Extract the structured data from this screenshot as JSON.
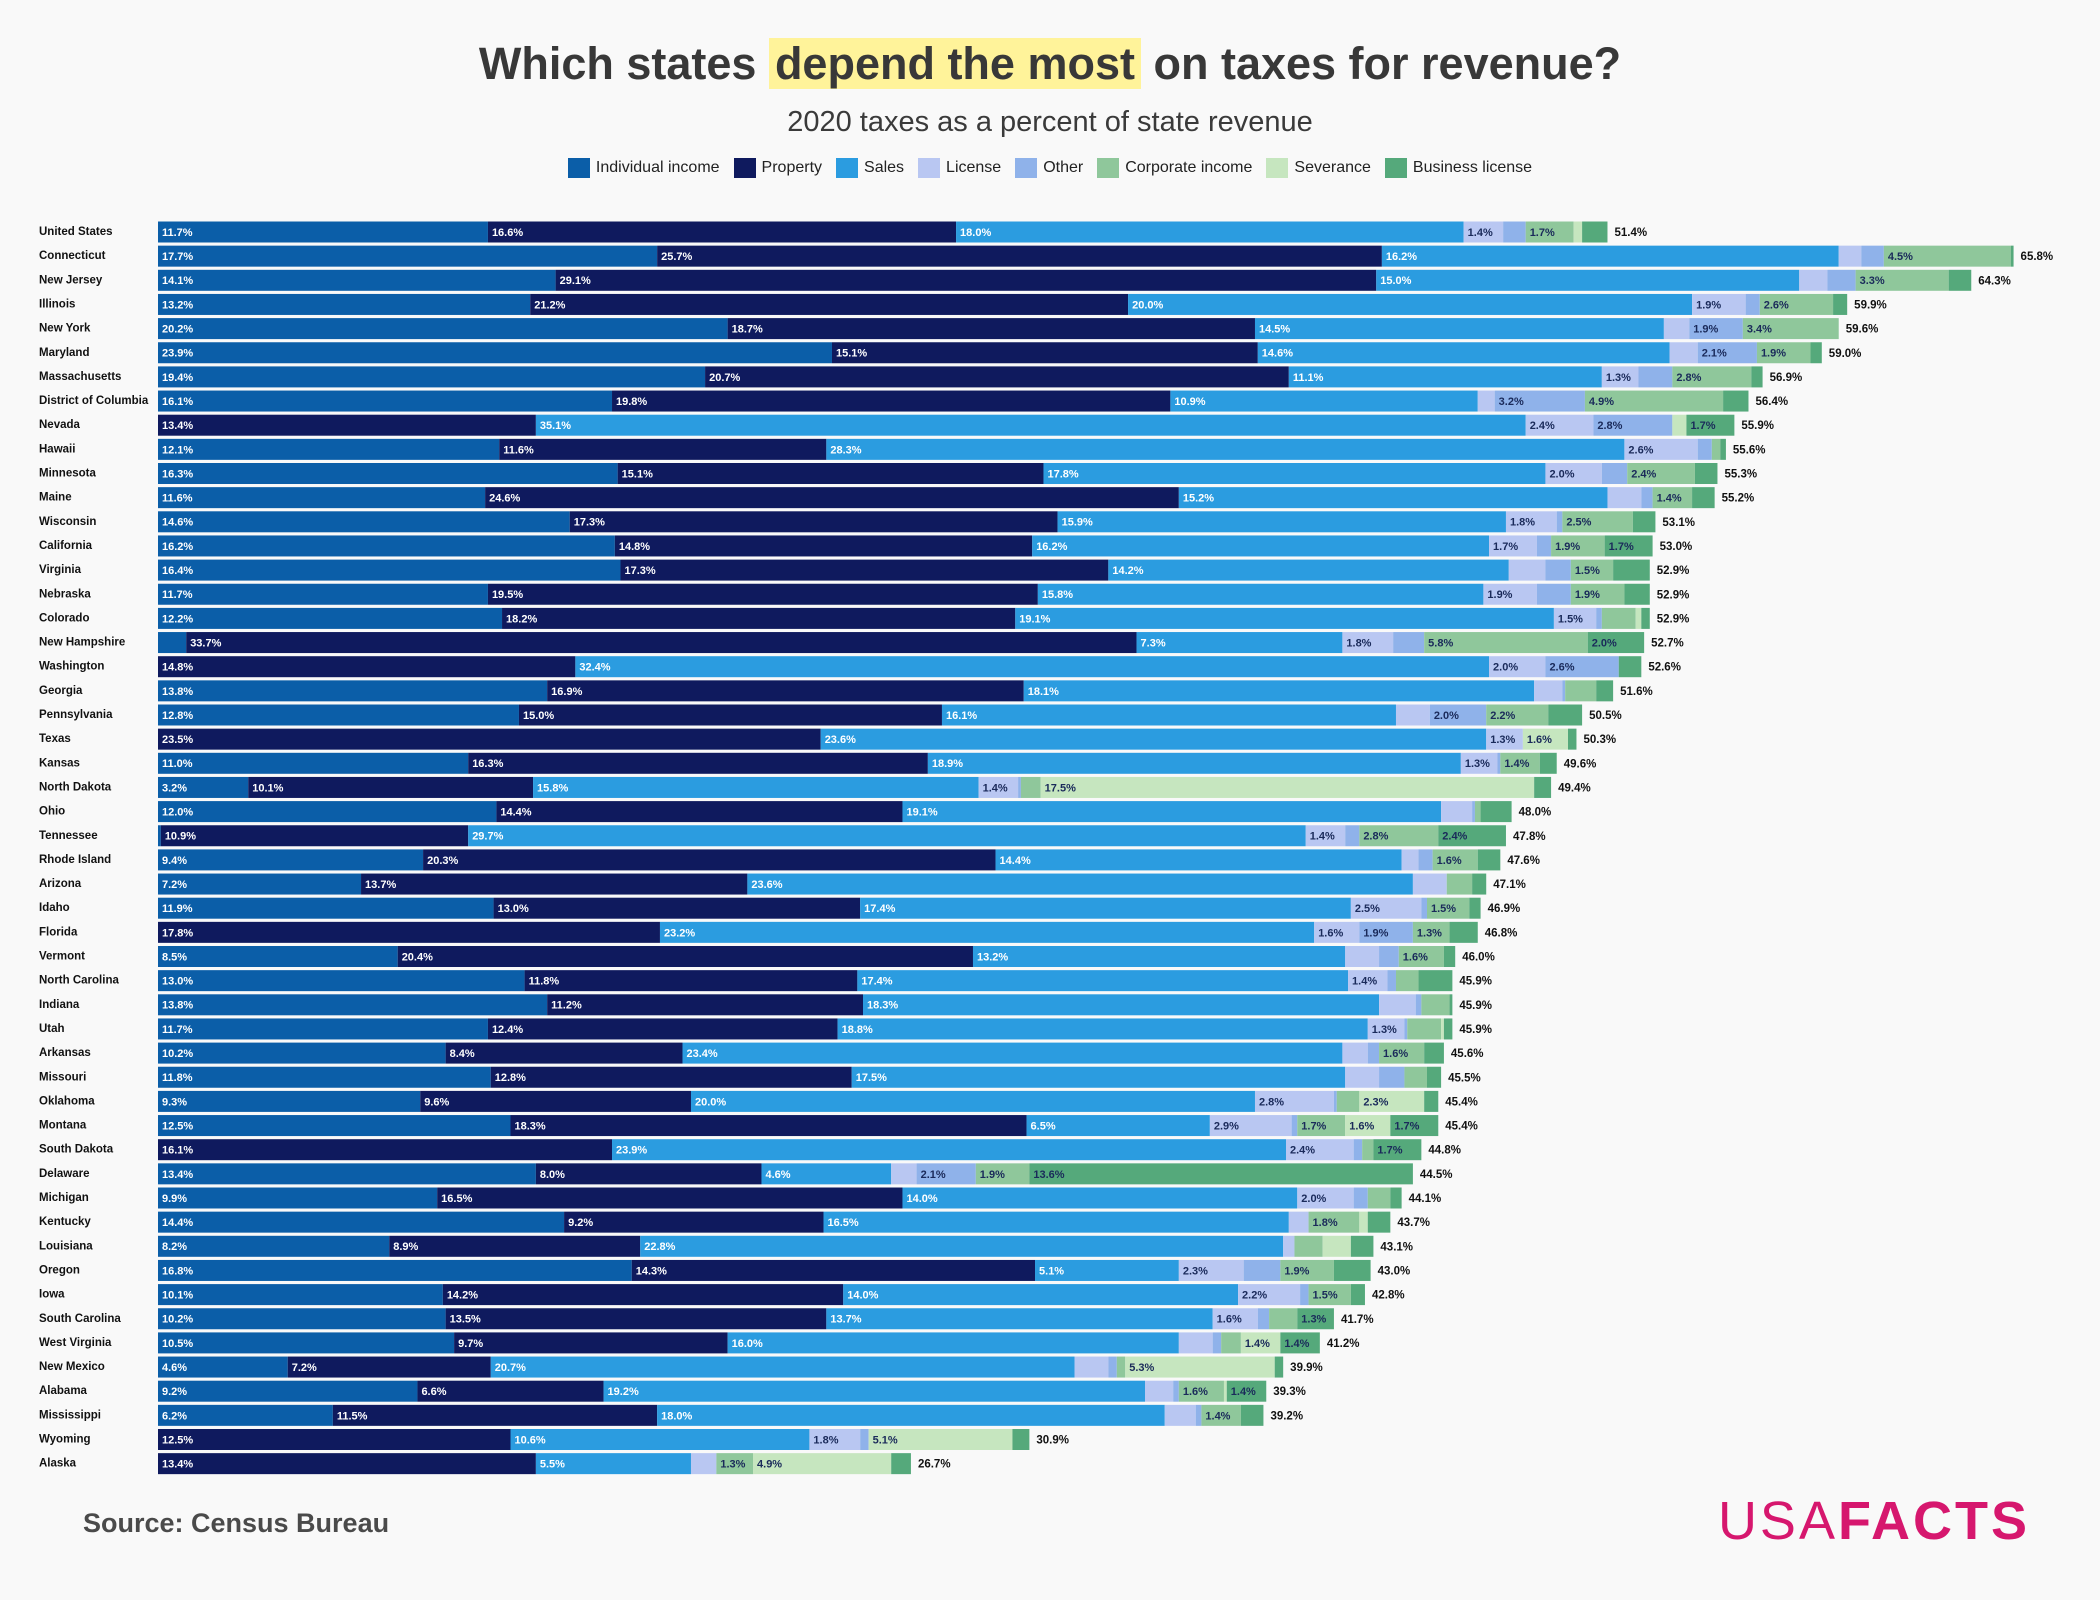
{
  "chart_data": {
    "type": "stacked-bar-horizontal",
    "title_parts": [
      "Which states",
      "depend the most",
      "on taxes for revenue?"
    ],
    "subtitle": "2020 taxes as a percent of state revenue",
    "categories": [
      "United States",
      "Connecticut",
      "New Jersey",
      "Illinois",
      "New York",
      "Maryland",
      "Massachusetts",
      "District of Columbia",
      "Nevada",
      "Hawaii",
      "Minnesota",
      "Maine",
      "Wisconsin",
      "California",
      "Virginia",
      "Nebraska",
      "Colorado",
      "New Hampshire",
      "Washington",
      "Georgia",
      "Pennsylvania",
      "Texas",
      "Kansas",
      "North Dakota",
      "Ohio",
      "Tennessee",
      "Rhode Island",
      "Arizona",
      "Idaho",
      "Florida",
      "Vermont",
      "North Carolina",
      "Indiana",
      "Utah",
      "Arkansas",
      "Missouri",
      "Oklahoma",
      "Montana",
      "South Dakota",
      "Delaware",
      "Michigan",
      "Kentucky",
      "Louisiana",
      "Oregon",
      "Iowa",
      "South Carolina",
      "West Virginia",
      "New Mexico",
      "Alabama",
      "Mississippi",
      "Wyoming",
      "Alaska"
    ],
    "series": [
      {
        "name": "Individual income",
        "color": "#0b5ea8",
        "values": [
          11.7,
          17.7,
          14.1,
          13.2,
          20.2,
          23.9,
          19.4,
          16.1,
          0,
          12.1,
          16.3,
          11.6,
          14.6,
          16.2,
          16.4,
          11.7,
          12.2,
          1.0,
          0,
          13.8,
          12.8,
          0,
          11.0,
          3.2,
          12.0,
          0.1,
          9.4,
          7.2,
          11.9,
          0,
          8.5,
          13.0,
          13.8,
          11.7,
          10.2,
          11.8,
          9.3,
          12.5,
          0,
          13.4,
          9.9,
          14.4,
          8.2,
          16.8,
          10.1,
          10.2,
          10.5,
          4.6,
          9.2,
          6.2,
          0,
          0
        ],
        "value_labels": [
          "11.7%",
          "17.7%",
          "14.1%",
          "13.2%",
          "20.2%",
          "23.9%",
          "19.4%",
          "16.1%",
          null,
          "12.1%",
          "16.3%",
          "11.6%",
          "14.6%",
          "16.2%",
          "16.4%",
          "11.7%",
          "12.2%",
          null,
          null,
          "13.8%",
          "12.8%",
          null,
          "11.0%",
          "3.2%",
          "12.0%",
          null,
          "9.4%",
          "7.2%",
          "11.9%",
          null,
          "8.5%",
          "13.0%",
          "13.8%",
          "11.7%",
          "10.2%",
          "11.8%",
          "9.3%",
          "12.5%",
          null,
          "13.4%",
          "9.9%",
          "14.4%",
          "8.2%",
          "16.8%",
          "10.1%",
          "10.2%",
          "10.5%",
          "4.6%",
          "9.2%",
          "6.2%",
          null,
          null
        ]
      },
      {
        "name": "Property",
        "color": "#0f1a5e",
        "values": [
          16.6,
          25.7,
          29.1,
          21.2,
          18.7,
          15.1,
          20.7,
          19.8,
          13.4,
          11.6,
          15.1,
          24.6,
          17.3,
          14.8,
          17.3,
          19.5,
          18.2,
          33.7,
          14.8,
          16.9,
          15.0,
          23.5,
          16.3,
          10.1,
          14.4,
          10.9,
          20.3,
          13.7,
          13.0,
          17.8,
          20.4,
          11.8,
          11.2,
          12.4,
          8.4,
          12.8,
          9.6,
          18.3,
          16.1,
          8.0,
          16.5,
          9.2,
          8.9,
          14.3,
          14.2,
          13.5,
          9.7,
          7.2,
          6.6,
          11.5,
          12.5,
          13.4
        ],
        "value_labels": [
          "16.6%",
          "25.7%",
          "29.1%",
          "21.2%",
          "18.7%",
          "15.1%",
          "20.7%",
          "19.8%",
          "13.4%",
          "11.6%",
          "15.1%",
          "24.6%",
          "17.3%",
          "14.8%",
          "17.3%",
          "19.5%",
          "18.2%",
          "33.7%",
          "14.8%",
          "16.9%",
          "15.0%",
          "23.5%",
          "16.3%",
          "10.1%",
          "14.4%",
          "10.9%",
          "20.3%",
          "13.7%",
          "13.0%",
          "17.8%",
          "20.4%",
          "11.8%",
          "11.2%",
          "12.4%",
          "8.4%",
          "12.8%",
          "9.6%",
          "18.3%",
          "16.1%",
          "8.0%",
          "16.5%",
          "9.2%",
          "8.9%",
          "14.3%",
          "14.2%",
          "13.5%",
          "9.7%",
          "7.2%",
          "6.6%",
          "11.5%",
          "12.5%",
          "13.4%"
        ]
      },
      {
        "name": "Sales",
        "color": "#2b9ce0",
        "values": [
          18.0,
          16.2,
          15.0,
          20.0,
          14.5,
          14.6,
          11.1,
          10.9,
          35.1,
          28.3,
          17.8,
          15.2,
          15.9,
          16.2,
          14.2,
          15.8,
          19.1,
          7.3,
          32.4,
          18.1,
          16.1,
          23.6,
          18.9,
          15.8,
          19.1,
          29.7,
          14.4,
          23.6,
          17.4,
          23.2,
          13.2,
          17.4,
          18.3,
          18.8,
          23.4,
          17.5,
          20.0,
          6.5,
          23.9,
          4.6,
          14.0,
          16.5,
          22.8,
          5.1,
          14.0,
          13.7,
          16.0,
          20.7,
          19.2,
          18.0,
          10.6,
          5.5
        ],
        "value_labels": [
          "18.0%",
          "16.2%",
          "15.0%",
          "20.0%",
          "14.5%",
          "14.6%",
          "11.1%",
          "10.9%",
          "35.1%",
          "28.3%",
          "17.8%",
          "15.2%",
          "15.9%",
          "16.2%",
          "14.2%",
          "15.8%",
          "19.1%",
          "7.3%",
          "32.4%",
          "18.1%",
          "16.1%",
          "23.6%",
          "18.9%",
          "15.8%",
          "19.1%",
          "29.7%",
          "14.4%",
          "23.6%",
          "17.4%",
          "23.2%",
          "13.2%",
          "17.4%",
          "18.3%",
          "18.8%",
          "23.4%",
          "17.5%",
          "20.0%",
          "6.5%",
          "23.9%",
          "4.6%",
          "14.0%",
          "16.5%",
          "22.8%",
          "5.1%",
          "14.0%",
          "13.7%",
          "16.0%",
          "20.7%",
          "19.2%",
          "18.0%",
          "10.6%",
          "5.5%"
        ]
      },
      {
        "name": "License",
        "color": "#b9c7f2",
        "values": [
          1.4,
          0.8,
          1.0,
          1.9,
          0.9,
          1.0,
          1.3,
          0.6,
          2.4,
          2.6,
          2.0,
          1.2,
          1.8,
          1.7,
          1.3,
          1.9,
          1.5,
          1.8,
          2.0,
          1.0,
          1.2,
          1.3,
          1.3,
          1.4,
          1.1,
          1.4,
          0.6,
          1.2,
          2.5,
          1.6,
          1.2,
          1.4,
          1.3,
          1.3,
          0.9,
          1.2,
          2.8,
          2.9,
          2.4,
          0.9,
          2.0,
          0.7,
          0.4,
          2.3,
          2.2,
          1.6,
          1.2,
          1.2,
          1.0,
          1.1,
          1.8,
          0.9
        ],
        "value_labels": [
          "1.4%",
          null,
          null,
          "1.9%",
          null,
          null,
          "1.3%",
          null,
          "2.4%",
          "2.6%",
          "2.0%",
          null,
          "1.8%",
          "1.7%",
          null,
          "1.9%",
          "1.5%",
          "1.8%",
          "2.0%",
          null,
          null,
          "1.3%",
          "1.3%",
          "1.4%",
          null,
          "1.4%",
          null,
          null,
          "2.5%",
          "1.6%",
          null,
          "1.4%",
          null,
          "1.3%",
          null,
          null,
          "2.8%",
          "2.9%",
          "2.4%",
          null,
          "2.0%",
          null,
          null,
          "2.3%",
          "2.2%",
          "1.6%",
          null,
          null,
          null,
          null,
          "1.8%",
          null
        ]
      },
      {
        "name": "Other",
        "color": "#8fb2ea",
        "values": [
          0.8,
          0.8,
          1.0,
          0.5,
          1.9,
          2.1,
          1.2,
          3.2,
          2.8,
          0.5,
          0.9,
          0.4,
          0.2,
          0.5,
          0.9,
          1.2,
          0.2,
          1.1,
          2.6,
          0.1,
          2.0,
          0,
          0.1,
          0.1,
          0.1,
          0.5,
          0.5,
          0,
          0.2,
          1.9,
          0.7,
          0.3,
          0.2,
          0.1,
          0.4,
          0.9,
          0.1,
          0.2,
          0.3,
          2.1,
          0.5,
          0,
          0,
          1.3,
          0.3,
          0.4,
          0.3,
          0.3,
          0.2,
          0.2,
          0.3,
          0
        ],
        "value_labels": [
          null,
          null,
          null,
          null,
          "1.9%",
          "2.1%",
          null,
          "3.2%",
          "2.8%",
          null,
          null,
          null,
          null,
          null,
          null,
          null,
          null,
          null,
          "2.6%",
          null,
          "2.0%",
          null,
          null,
          null,
          null,
          null,
          null,
          null,
          null,
          "1.9%",
          null,
          null,
          null,
          null,
          null,
          null,
          null,
          null,
          null,
          "2.1%",
          null,
          null,
          null,
          null,
          null,
          null,
          null,
          null,
          null,
          null,
          null,
          null
        ]
      },
      {
        "name": "Corporate income",
        "color": "#8fc79b",
        "values": [
          1.7,
          4.5,
          3.3,
          2.6,
          3.4,
          1.9,
          2.8,
          4.9,
          0,
          0.3,
          2.4,
          1.4,
          2.5,
          1.9,
          1.5,
          1.9,
          1.2,
          5.8,
          0,
          1.1,
          2.2,
          0,
          1.4,
          0.7,
          0.2,
          2.8,
          1.6,
          0.9,
          1.5,
          1.3,
          1.6,
          0.8,
          1.0,
          1.2,
          1.6,
          0.8,
          0.8,
          1.7,
          0.4,
          1.9,
          0.8,
          1.8,
          1.0,
          1.9,
          1.5,
          1.0,
          0.7,
          0.3,
          1.6,
          1.4,
          0,
          1.3
        ],
        "value_labels": [
          "1.7%",
          "4.5%",
          "3.3%",
          "2.6%",
          "3.4%",
          "1.9%",
          "2.8%",
          "4.9%",
          null,
          null,
          "2.4%",
          "1.4%",
          "2.5%",
          "1.9%",
          "1.5%",
          "1.9%",
          null,
          "5.8%",
          null,
          null,
          "2.2%",
          null,
          "1.4%",
          null,
          null,
          "2.8%",
          "1.6%",
          null,
          "1.5%",
          "1.3%",
          "1.6%",
          null,
          null,
          null,
          "1.6%",
          null,
          null,
          "1.7%",
          null,
          "1.9%",
          null,
          "1.8%",
          null,
          "1.9%",
          "1.5%",
          null,
          null,
          null,
          "1.6%",
          "1.4%",
          null,
          "1.3%"
        ]
      },
      {
        "name": "Severance",
        "color": "#c6e6bf",
        "values": [
          0.3,
          0,
          0,
          0,
          0,
          0,
          0,
          0,
          0.5,
          0,
          0,
          0,
          0,
          0,
          0,
          0,
          0.2,
          0,
          0,
          0,
          0,
          1.6,
          0,
          17.5,
          0,
          0,
          0,
          0,
          0,
          0,
          0,
          0,
          0,
          0.1,
          0,
          0,
          2.3,
          1.6,
          0,
          0,
          0,
          0.3,
          1.0,
          0,
          0,
          0,
          1.4,
          5.3,
          0.1,
          0,
          5.1,
          4.9
        ],
        "value_labels": [
          null,
          null,
          null,
          null,
          null,
          null,
          null,
          null,
          null,
          null,
          null,
          null,
          null,
          null,
          null,
          null,
          null,
          null,
          null,
          null,
          null,
          "1.6%",
          null,
          "17.5%",
          null,
          null,
          null,
          null,
          null,
          null,
          null,
          null,
          null,
          null,
          null,
          null,
          "2.3%",
          "1.6%",
          null,
          null,
          null,
          null,
          null,
          null,
          null,
          null,
          "1.4%",
          "5.3%",
          null,
          null,
          "5.1%",
          "4.9%"
        ]
      },
      {
        "name": "Business license",
        "color": "#55a97b",
        "values": [
          0.9,
          0.1,
          0.8,
          0.5,
          0,
          0.4,
          0.4,
          0.9,
          1.7,
          0.2,
          0.8,
          0.8,
          0.8,
          1.7,
          1.3,
          0.9,
          0.3,
          2.0,
          0.8,
          0.6,
          1.2,
          0.3,
          0.6,
          0.6,
          1.1,
          2.4,
          0.8,
          0.5,
          0.4,
          1.0,
          0.4,
          1.2,
          0.1,
          0.3,
          0.7,
          0.5,
          0.5,
          1.7,
          1.7,
          13.6,
          0.4,
          0.8,
          0.8,
          1.3,
          0.5,
          1.3,
          1.4,
          0.3,
          1.4,
          0.8,
          0.6,
          0.7
        ],
        "value_labels": [
          null,
          null,
          null,
          null,
          null,
          null,
          null,
          null,
          "1.7%",
          null,
          null,
          null,
          null,
          "1.7%",
          null,
          null,
          null,
          "2.0%",
          null,
          null,
          null,
          null,
          null,
          null,
          null,
          "2.4%",
          null,
          null,
          null,
          null,
          null,
          null,
          null,
          null,
          null,
          null,
          null,
          "1.7%",
          "1.7%",
          "13.6%",
          null,
          null,
          null,
          null,
          null,
          "1.3%",
          "1.4%",
          null,
          "1.4%",
          null,
          null,
          null
        ]
      }
    ],
    "totals": {
      "values": [
        51.4,
        65.8,
        64.3,
        59.9,
        59.6,
        59.0,
        56.9,
        56.4,
        55.9,
        55.6,
        55.3,
        55.2,
        53.1,
        53.0,
        52.9,
        52.9,
        52.9,
        52.7,
        52.6,
        51.6,
        50.5,
        50.3,
        49.6,
        49.4,
        48.0,
        47.8,
        47.6,
        47.1,
        46.9,
        46.8,
        46.0,
        45.9,
        45.9,
        45.9,
        45.6,
        45.5,
        45.4,
        45.4,
        44.8,
        44.5,
        44.1,
        43.7,
        43.1,
        43.0,
        42.8,
        41.7,
        41.2,
        39.9,
        39.3,
        39.2,
        30.9,
        26.7
      ],
      "value_labels": [
        "51.4%",
        "65.8%",
        "64.3%",
        "59.9%",
        "59.6%",
        "59.0%",
        "56.9%",
        "56.4%",
        "55.9%",
        "55.6%",
        "55.3%",
        "55.2%",
        "53.1%",
        "53.0%",
        "52.9%",
        "52.9%",
        "52.9%",
        "52.7%",
        "52.6%",
        "51.6%",
        "50.5%",
        "50.3%",
        "49.6%",
        "49.4%",
        "48.0%",
        "47.8%",
        "47.6%",
        "47.1%",
        "46.9%",
        "46.8%",
        "46.0%",
        "45.9%",
        "45.9%",
        "45.9%",
        "45.6%",
        "45.5%",
        "45.4%",
        "45.4%",
        "44.8%",
        "44.5%",
        "44.1%",
        "43.7%",
        "43.1%",
        "43.0%",
        "42.8%",
        "41.7%",
        "41.2%",
        "39.9%",
        "39.3%",
        "39.2%",
        "30.9%",
        "26.7%"
      ]
    },
    "source": "Source: Census Bureau"
  },
  "logo": [
    "USA",
    "FACTS"
  ]
}
